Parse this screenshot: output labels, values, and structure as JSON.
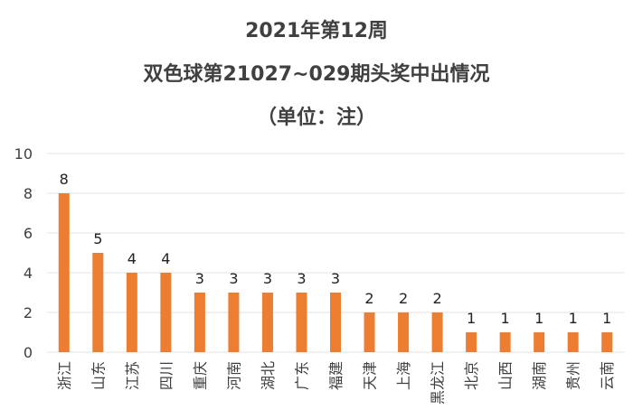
{
  "chart_data": {
    "type": "bar",
    "title": "2021年第12周",
    "subtitle": "双色球第21027~029期头奖中出情况",
    "unit": "（单位：注）",
    "xlabel": "",
    "ylabel": "",
    "ylim": [
      0,
      10
    ],
    "yticks": [
      0,
      2,
      4,
      6,
      8,
      10
    ],
    "grid": true,
    "legend": "none",
    "bar_color": "#ED7D31",
    "categories": [
      "浙江",
      "山东",
      "江苏",
      "四川",
      "重庆",
      "河南",
      "湖北",
      "广东",
      "福建",
      "天津",
      "上海",
      "黑龙江",
      "北京",
      "山西",
      "湖南",
      "贵州",
      "云南"
    ],
    "values": [
      8,
      5,
      4,
      4,
      3,
      3,
      3,
      3,
      3,
      2,
      2,
      2,
      1,
      1,
      1,
      1,
      1
    ]
  }
}
